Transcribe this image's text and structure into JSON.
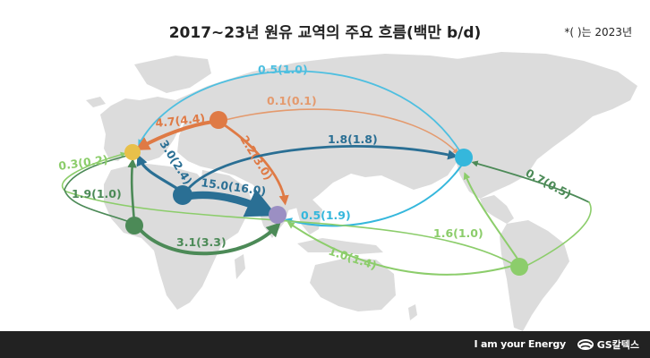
{
  "title": "2017~23년 원유 교역의 주요 흐름(백만 b/d)",
  "note": "*(   )는 2023년",
  "footer": {
    "tagline": "I am your Energy",
    "brand": "GS칼텍스"
  },
  "colors": {
    "map_land": "#dcdcdc",
    "footer_bg": "#222222",
    "europe": "#e8c04a",
    "russia": "#df7a45",
    "middle_east": "#2a6f94",
    "asia": "#9b8fc3",
    "north_america": "#35b7dc",
    "west_africa": "#4c8a57",
    "south_america": "#8ccd6b"
  },
  "flows": [
    {
      "id": "na-eu",
      "value": "0.5(1.0)",
      "color": "#4ebfe0"
    },
    {
      "id": "ru-na",
      "value": "0.1(0.1)",
      "color": "#e49a6e"
    },
    {
      "id": "ru-eu",
      "value": "4.7(4.4)",
      "color": "#df7a45"
    },
    {
      "id": "ru-as",
      "value": "2.2(3.0)",
      "color": "#df7a45"
    },
    {
      "id": "me-eu",
      "value": "3.0(2.4)",
      "color": "#2a6f94"
    },
    {
      "id": "me-na",
      "value": "1.8(1.8)",
      "color": "#2a6f94"
    },
    {
      "id": "me-as",
      "value": "15.0(16.0)",
      "color": "#2a6f94"
    },
    {
      "id": "na-as",
      "value": "0.5(1.9)",
      "color": "#35b7dc"
    },
    {
      "id": "sa-eu",
      "value": "0.3(0.2)",
      "color": "#8ccd6b"
    },
    {
      "id": "wa-eu",
      "value": "1.9(1.0)",
      "color": "#4c8a57"
    },
    {
      "id": "wa-as",
      "value": "3.1(3.3)",
      "color": "#4c8a57"
    },
    {
      "id": "sa-as",
      "value": "1.0(1.4)",
      "color": "#8ccd6b"
    },
    {
      "id": "sa-na",
      "value": "1.6(1.0)",
      "color": "#8ccd6b"
    },
    {
      "id": "mx-na",
      "value": "0.7(0.5)",
      "color": "#4c8a57"
    }
  ]
}
